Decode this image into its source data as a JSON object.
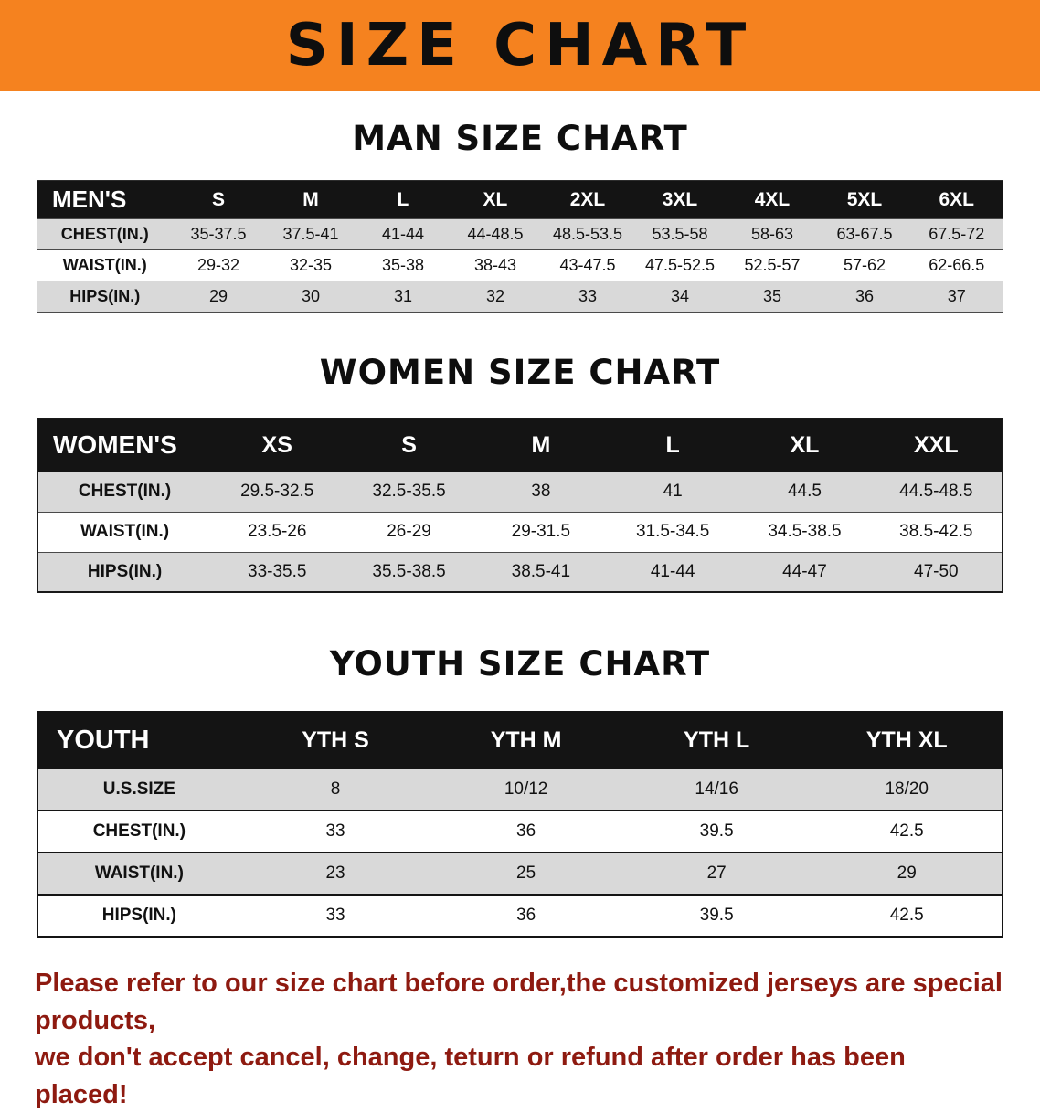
{
  "banner": {
    "title": "SIZE CHART"
  },
  "colors": {
    "banner_bg": "#f5821f",
    "table_header_bg": "#141414",
    "row_shade": "#d9d9d9",
    "notice_text": "#8e1a10"
  },
  "sections": [
    {
      "heading": "MAN SIZE CHART",
      "table": {
        "header": [
          "MEN'S",
          "S",
          "M",
          "L",
          "XL",
          "2XL",
          "3XL",
          "4XL",
          "5XL",
          "6XL"
        ],
        "rows": [
          [
            "CHEST(IN.)",
            "35-37.5",
            "37.5-41",
            "41-44",
            "44-48.5",
            "48.5-53.5",
            "53.5-58",
            "58-63",
            "63-67.5",
            "67.5-72"
          ],
          [
            "WAIST(IN.)",
            "29-32",
            "32-35",
            "35-38",
            "38-43",
            "43-47.5",
            "47.5-52.5",
            "52.5-57",
            "57-62",
            "62-66.5"
          ],
          [
            "HIPS(IN.)",
            "29",
            "30",
            "31",
            "32",
            "33",
            "34",
            "35",
            "36",
            "37"
          ]
        ]
      }
    },
    {
      "heading": "WOMEN SIZE CHART",
      "table": {
        "header": [
          "WOMEN'S",
          "XS",
          "S",
          "M",
          "L",
          "XL",
          "XXL"
        ],
        "rows": [
          [
            "CHEST(IN.)",
            "29.5-32.5",
            "32.5-35.5",
            "38",
            "41",
            "44.5",
            "44.5-48.5"
          ],
          [
            "WAIST(IN.)",
            "23.5-26",
            "26-29",
            "29-31.5",
            "31.5-34.5",
            "34.5-38.5",
            "38.5-42.5"
          ],
          [
            "HIPS(IN.)",
            "33-35.5",
            "35.5-38.5",
            "38.5-41",
            "41-44",
            "44-47",
            "47-50"
          ]
        ]
      }
    },
    {
      "heading": "YOUTH SIZE CHART",
      "table": {
        "header": [
          "YOUTH",
          "YTH S",
          "YTH M",
          "YTH L",
          "YTH XL"
        ],
        "rows": [
          [
            "U.S.SIZE",
            "8",
            "10/12",
            "14/16",
            "18/20"
          ],
          [
            "CHEST(IN.)",
            "33",
            "36",
            "39.5",
            "42.5"
          ],
          [
            "WAIST(IN.)",
            "23",
            "25",
            "27",
            "29"
          ],
          [
            "HIPS(IN.)",
            "33",
            "36",
            "39.5",
            "42.5"
          ]
        ]
      }
    }
  ],
  "footer": {
    "line1": "Please refer to our size chart before order,the customized jerseys are special products,",
    "line2": "we don't accept cancel, change, teturn or refund after order has been placed!"
  }
}
